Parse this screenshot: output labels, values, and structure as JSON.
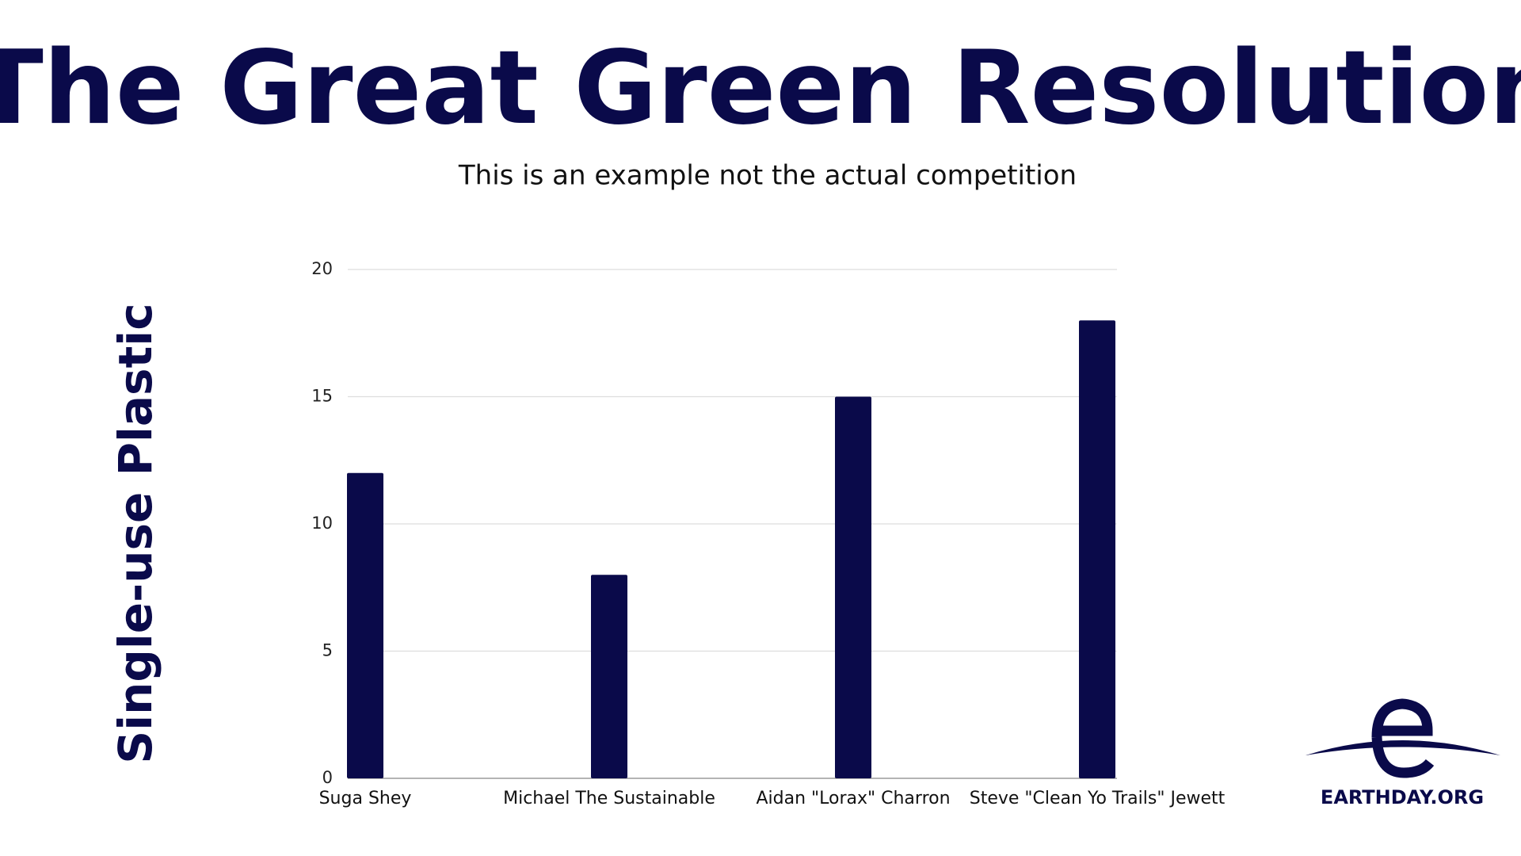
{
  "chart_data": {
    "type": "bar",
    "title": "The Great Green Resolution",
    "subtitle": "This is an example not the actual competition",
    "y_label": "Single-use Plastic",
    "categories": [
      "Suga Shey",
      "Michael The Sustainable",
      "Aidan \"Lorax\" Charron",
      "Steve \"Clean Yo Trails\" Jewett"
    ],
    "values": [
      12,
      8,
      15,
      18
    ],
    "color": "#0a0a4a",
    "ylim": [
      0,
      20
    ],
    "yticks": [
      0,
      5,
      10,
      15,
      20
    ],
    "grid": true
  },
  "logo_text": "EARTHDAY.ORG"
}
